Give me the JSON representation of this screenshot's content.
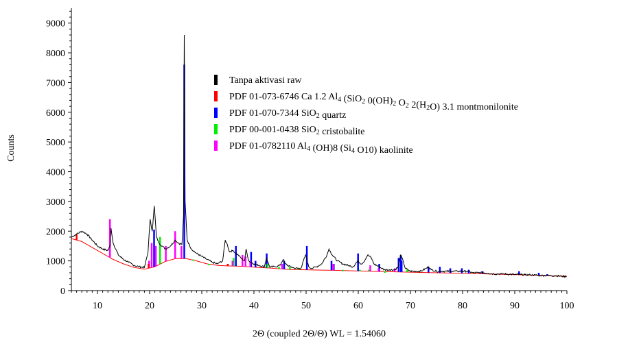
{
  "chart_data": {
    "type": "line",
    "xlabel": "2Θ (coupled 2Θ/Θ) WL = 1.54060",
    "ylabel": "Counts",
    "xlim": [
      5,
      100
    ],
    "ylim": [
      0,
      9500
    ],
    "x_ticks": [
      10,
      20,
      30,
      40,
      50,
      60,
      70,
      80,
      90,
      100
    ],
    "y_ticks": [
      0,
      1000,
      2000,
      3000,
      4000,
      5000,
      6000,
      7000,
      8000,
      9000
    ],
    "grid": false,
    "legend_position": "upper-right of center",
    "legend": [
      {
        "name": "Tanpa aktivasi raw",
        "color": "#000000",
        "parts": [
          {
            "t": "Tanpa aktivasi raw"
          }
        ]
      },
      {
        "name": "PDF 01-073-6746 Ca 1.2 Al4 (SiO2 0(OH)2 O2 2(H2O) 3.1 montmonilonite",
        "color": "#ff0000",
        "parts": [
          {
            "t": "PDF 01-073-6746 Ca 1.2 Al"
          },
          {
            "t": "4",
            "sub": true
          },
          {
            "t": " (SiO"
          },
          {
            "t": "2",
            "sub": true
          },
          {
            "t": " 0(OH)"
          },
          {
            "t": "2",
            "sub": true
          },
          {
            "t": " O"
          },
          {
            "t": "2",
            "sub": true
          },
          {
            "t": " 2(H"
          },
          {
            "t": "2",
            "sub": true
          },
          {
            "t": "O) 3.1 montmonilonite"
          }
        ]
      },
      {
        "name": "PDF 01-070-7344 SiO2 quartz",
        "color": "#0000ff",
        "parts": [
          {
            "t": "PDF 01-070-7344 SiO"
          },
          {
            "t": "2",
            "sub": true
          },
          {
            "t": " quartz"
          }
        ]
      },
      {
        "name": "PDF 00-001-0438 SiO2 cristobalite",
        "color": "#00ee00",
        "parts": [
          {
            "t": "PDF 00-001-0438 SiO"
          },
          {
            "t": "2",
            "sub": true
          },
          {
            "t": " cristobalite"
          }
        ]
      },
      {
        "name": "PDF 01-0782110 Al4 (OH)8 (Si4 O10) kaolinite",
        "color": "#ff00ff",
        "parts": [
          {
            "t": "PDF 01-0782110 Al"
          },
          {
            "t": "4",
            "sub": true
          },
          {
            "t": " (OH)8 (Si"
          },
          {
            "t": "4",
            "sub": true
          },
          {
            "t": " O10) kaolinite"
          }
        ]
      }
    ],
    "raw_pattern": {
      "name": "Tanpa aktivasi raw",
      "color": "#000000",
      "x": [
        5,
        6,
        7,
        8,
        9,
        10,
        11,
        12,
        12.4,
        12.6,
        13,
        14,
        15,
        16,
        17,
        18,
        19,
        19.7,
        20.1,
        20.5,
        20.9,
        21.3,
        21.8,
        22.4,
        23,
        24,
        24.9,
        25.5,
        26.2,
        26.5,
        26.64,
        26.8,
        27.2,
        28,
        29,
        30,
        31,
        32,
        33,
        34,
        34.5,
        34.9,
        35.3,
        36,
        36.5,
        37,
        37.5,
        38.2,
        38.5,
        39,
        39.4,
        40,
        41,
        42,
        42.4,
        43,
        44,
        45,
        45.6,
        46,
        47,
        48,
        49,
        49.9,
        50.5,
        51,
        52,
        53,
        54,
        54.4,
        55,
        56,
        57,
        58,
        59,
        59.9,
        60.5,
        61,
        61.8,
        62.5,
        63,
        64,
        65,
        66,
        67,
        67.7,
        68.1,
        68.6,
        69,
        70,
        71,
        72,
        73,
        73.5,
        74,
        75,
        76,
        77,
        78,
        79,
        80,
        81,
        82,
        83,
        84,
        85,
        86,
        87,
        88,
        89,
        90,
        91,
        92,
        93,
        94,
        95,
        96,
        97,
        98,
        99,
        99.9
      ],
      "y": [
        1800,
        1900,
        2000,
        1900,
        1700,
        1500,
        1400,
        1350,
        1500,
        2100,
        1600,
        1200,
        1050,
        950,
        850,
        800,
        780,
        1300,
        2400,
        2000,
        2850,
        1800,
        1600,
        1500,
        1400,
        1500,
        1700,
        1600,
        1550,
        2500,
        8600,
        3000,
        1700,
        1400,
        1250,
        1150,
        1050,
        950,
        900,
        1000,
        1700,
        1550,
        1300,
        1350,
        1250,
        1200,
        1100,
        1000,
        1400,
        1000,
        950,
        900,
        850,
        800,
        1100,
        800,
        800,
        850,
        1050,
        900,
        800,
        750,
        750,
        1200,
        800,
        750,
        800,
        900,
        1200,
        1400,
        1200,
        1000,
        900,
        850,
        800,
        1000,
        900,
        950,
        1200,
        1100,
        900,
        800,
        700,
        700,
        700,
        800,
        1200,
        1000,
        750,
        650,
        650,
        650,
        750,
        800,
        700,
        650,
        650,
        650,
        650,
        650,
        650,
        650,
        600,
        600,
        600,
        580,
        560,
        560,
        560,
        550,
        540,
        540,
        530,
        530,
        520,
        510,
        510,
        500,
        500,
        480,
        480
      ]
    },
    "background": {
      "color": "#ff0000",
      "x": [
        5,
        7,
        9,
        11,
        13,
        15,
        17,
        19,
        21,
        23,
        25,
        27,
        29,
        31,
        33,
        35,
        37,
        39,
        41,
        43,
        45,
        47,
        50,
        53,
        56,
        60,
        65,
        70,
        75,
        80,
        85,
        90,
        95,
        100
      ],
      "y": [
        1750,
        1650,
        1450,
        1250,
        1050,
        900,
        780,
        720,
        800,
        980,
        1080,
        1080,
        1000,
        900,
        850,
        830,
        820,
        800,
        780,
        760,
        730,
        710,
        700,
        690,
        680,
        660,
        640,
        620,
        600,
        580,
        560,
        540,
        510,
        480
      ]
    },
    "reference_peaks": [
      {
        "phase": "quartz",
        "color": "#0000ff",
        "x": [
          20.86,
          26.64,
          36.54,
          39.46,
          40.3,
          42.45,
          45.79,
          50.14,
          54.87,
          55.3,
          59.96,
          64.03,
          67.74,
          68.14,
          68.31,
          73.46,
          75.64,
          77.65,
          79.87,
          81.17,
          83.83,
          90.83,
          94.6,
          96.22
        ],
        "y": [
          2050,
          7600,
          1500,
          1300,
          1000,
          1250,
          1000,
          1500,
          1000,
          900,
          1250,
          900,
          1100,
          1200,
          1000,
          800,
          800,
          750,
          750,
          700,
          650,
          650,
          600,
          550
        ]
      },
      {
        "phase": "cristobalite",
        "color": "#00ee00",
        "x": [
          22.0,
          28.4,
          31.4,
          36.1,
          42.6,
          44.8,
          46.9,
          48.5,
          57.0,
          60.3,
          62.0,
          65.1,
          69.4
        ],
        "y": [
          1800,
          1050,
          900,
          1100,
          900,
          800,
          800,
          750,
          700,
          700,
          700,
          650,
          700
        ]
      },
      {
        "phase": "kaolinite",
        "color": "#ff00ff",
        "x": [
          12.4,
          19.9,
          20.4,
          21.2,
          23.1,
          24.9,
          26.1,
          35.0,
          35.9,
          37.8,
          38.4,
          39.3,
          45.4,
          55.2,
          62.3,
          63.9,
          67.0
        ],
        "y": [
          2400,
          1000,
          1600,
          1500,
          1500,
          2000,
          1500,
          900,
          1000,
          1200,
          1150,
          1000,
          900,
          900,
          850,
          750,
          750
        ]
      },
      {
        "phase": "montmorillonite",
        "color": "#ff0000",
        "x": [
          6.0,
          19.8,
          35.0
        ],
        "y": [
          1900,
          900,
          900
        ]
      }
    ]
  }
}
